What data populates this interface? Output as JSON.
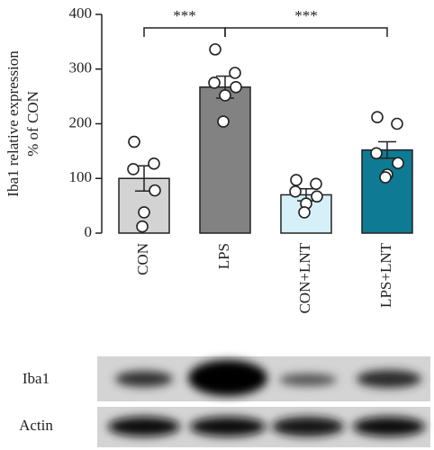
{
  "chart_data": {
    "type": "bar",
    "ylabel": [
      "Iba1 relative expression",
      "% of CON"
    ],
    "categories": [
      "CON",
      "LPS",
      "CON+LNT",
      "LPS+LNT"
    ],
    "values": [
      100,
      267,
      70,
      152
    ],
    "errors": [
      23,
      20,
      11,
      15
    ],
    "colors": [
      "#d3d3d3",
      "#828282",
      "#d6f0f9",
      "#0f7a93"
    ],
    "points": [
      [
        167,
        127,
        117,
        78,
        38,
        12
      ],
      [
        336,
        293,
        275,
        267,
        252,
        204
      ],
      [
        97,
        90,
        76,
        67,
        54,
        38
      ],
      [
        212,
        200,
        146,
        128,
        107,
        102
      ]
    ],
    "ylim": [
      0,
      400
    ],
    "yticks": [
      0,
      100,
      200,
      300,
      400
    ],
    "significance": [
      {
        "from": 0,
        "to": 1,
        "label": "***"
      },
      {
        "from": 1,
        "to": 3,
        "label": "***"
      }
    ]
  },
  "blot": {
    "rows": [
      "Iba1",
      "Actin"
    ]
  }
}
